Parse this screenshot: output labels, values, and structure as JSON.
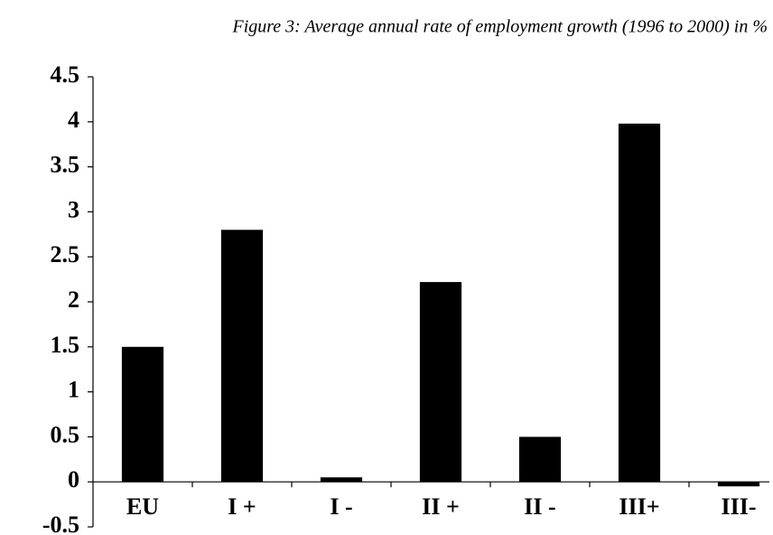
{
  "chart_data": {
    "type": "bar",
    "title": "Figure 3: Average annual rate of employment growth (1996 to 2000) in %",
    "categories": [
      "EU",
      "I +",
      "I -",
      "II +",
      "II -",
      "III+",
      "III-"
    ],
    "values": [
      1.5,
      2.8,
      0.05,
      2.22,
      0.5,
      3.98,
      -0.05
    ],
    "color": "#000000",
    "ylim": [
      -0.5,
      4.5
    ],
    "yticks": [
      -0.5,
      0,
      0.5,
      1,
      1.5,
      2,
      2.5,
      3,
      3.5,
      4,
      4.5
    ],
    "grid": false
  }
}
